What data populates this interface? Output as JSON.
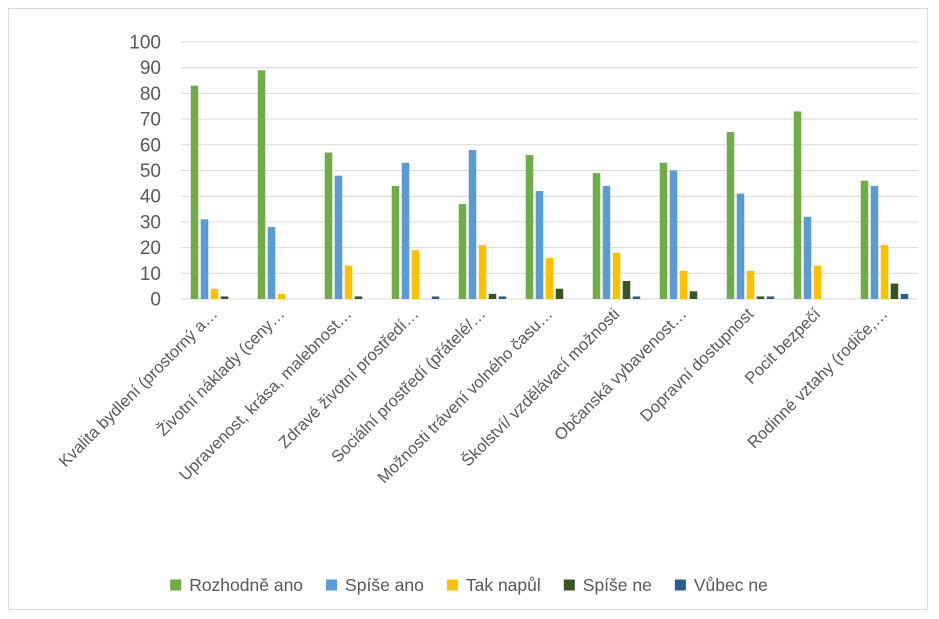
{
  "chart_data": {
    "type": "bar",
    "title": "",
    "xlabel": "",
    "ylabel": "",
    "ylim": [
      0,
      100
    ],
    "yticks": [
      0,
      10,
      20,
      30,
      40,
      50,
      60,
      70,
      80,
      90,
      100
    ],
    "grid": true,
    "legend_position": "bottom",
    "categories": [
      "Kvalita bydlení (prostorný a…",
      "Životní náklady (ceny…",
      "Upravenost, krása, malebnost…",
      "Zdravé životní prostředí…",
      "Sociální prostředí (přátelé/…",
      "Možnosti trávení volného času…",
      "Školství/ vzdělávací možnosti",
      "Občanská vybavenost…",
      "Dopravní dostupnost",
      "Pocit bezpečí",
      "Rodinné vztahy (rodiče,…"
    ],
    "series": [
      {
        "name": "Rozhodně ano",
        "color": "#70ad47",
        "values": [
          83,
          89,
          57,
          44,
          37,
          56,
          49,
          53,
          65,
          73,
          46
        ]
      },
      {
        "name": "Spíše ano",
        "color": "#5b9bd5",
        "values": [
          31,
          28,
          48,
          53,
          58,
          42,
          44,
          50,
          41,
          32,
          44
        ]
      },
      {
        "name": "Tak napůl",
        "color": "#ffc000",
        "values": [
          4,
          2,
          13,
          19,
          21,
          16,
          18,
          11,
          11,
          13,
          21
        ]
      },
      {
        "name": "Spíše ne",
        "color": "#375623",
        "values": [
          1,
          0,
          1,
          0,
          2,
          4,
          7,
          3,
          1,
          0,
          6
        ]
      },
      {
        "name": "Vůbec ne",
        "color": "#255e91",
        "values": [
          0,
          0,
          0,
          1,
          1,
          0,
          1,
          0,
          1,
          0,
          2
        ]
      }
    ]
  }
}
